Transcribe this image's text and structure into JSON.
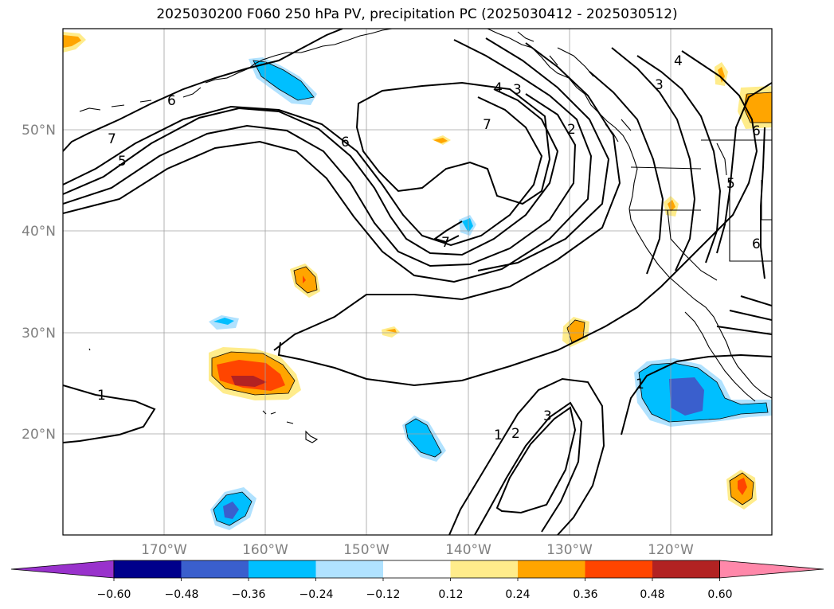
{
  "title": "2025030200 F060 250 hPa PV, precipitation PC (2025030412 - 2025030512)",
  "map": {
    "projection": "PlateCarree",
    "extent_lon": [
      -180,
      -110
    ],
    "extent_lat": [
      10,
      60
    ],
    "lat_labels": [
      "50°N",
      "40°N",
      "30°N",
      "20°N"
    ],
    "lon_labels": [
      "170°W",
      "160°W",
      "150°W",
      "140°W",
      "130°W",
      "120°W"
    ],
    "grid": true
  },
  "contour_labels": [
    {
      "text": "7"
    },
    {
      "text": "5"
    },
    {
      "text": "6"
    },
    {
      "text": "6"
    },
    {
      "text": "4"
    },
    {
      "text": "3"
    },
    {
      "text": "7"
    },
    {
      "text": "2"
    },
    {
      "text": "4"
    },
    {
      "text": "3"
    },
    {
      "text": "6"
    },
    {
      "text": "5"
    },
    {
      "text": "6"
    },
    {
      "text": "7"
    },
    {
      "text": "1"
    },
    {
      "text": "1"
    },
    {
      "text": "2"
    },
    {
      "text": "3"
    },
    {
      "text": "1"
    }
  ],
  "colorbar": {
    "ticks": [
      "−0.60",
      "−0.48",
      "−0.36",
      "−0.24",
      "−0.12",
      "0.12",
      "0.24",
      "0.36",
      "0.48",
      "0.60"
    ],
    "colors": [
      "#9932CC",
      "#00008B",
      "#3A5FCD",
      "#00BFFF",
      "#B0E2FF",
      "#FFFFFF",
      "#FFEC8B",
      "#FFA500",
      "#FF4500",
      "#B22222",
      "#FF88AA"
    ],
    "extend": "both"
  }
}
